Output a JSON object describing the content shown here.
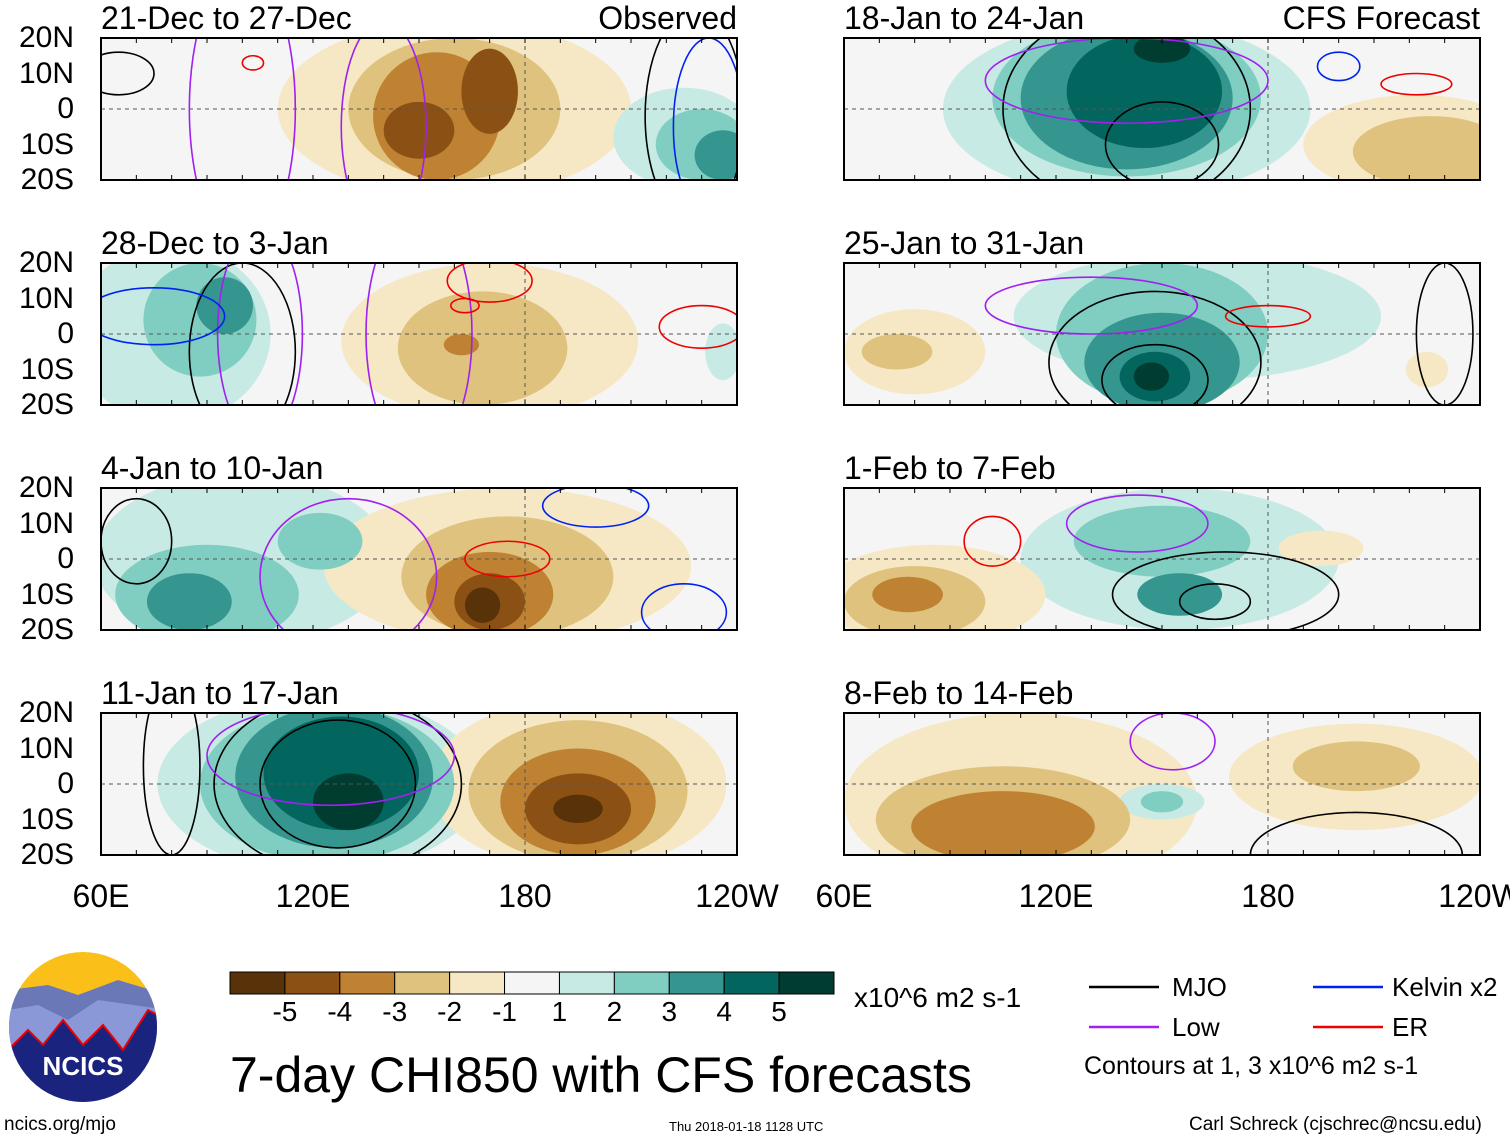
{
  "chart_data": {
    "type": "heatmap",
    "title": "7-day CHI850 with CFS forecasts",
    "units": "x10^6 m2 s-1",
    "lon_range": [
      60,
      240
    ],
    "lat_range": [
      -20,
      20
    ],
    "lat_ticks": [
      "20N",
      "10N",
      "0",
      "10S",
      "20S"
    ],
    "lon_ticks": [
      "60E",
      "120E",
      "180",
      "120W"
    ],
    "column_labels": {
      "left": "Observed",
      "right": "CFS Forecast"
    },
    "colorbar": {
      "levels": [
        "-5",
        "-4",
        "-3",
        "-2",
        "-1",
        "1",
        "2",
        "3",
        "4",
        "5"
      ],
      "colors": [
        "#583208",
        "#8b5114",
        "#bf8232",
        "#dfc27e",
        "#f6e8c4",
        "#f5f5f5",
        "#c7eae5",
        "#80cdc1",
        "#35968f",
        "#02665e",
        "#013c30"
      ]
    },
    "legend": {
      "mjo": "MJO",
      "kelvin": "Kelvin x2",
      "low": "Low",
      "er": "ER",
      "note": "Contours at 1, 3 x10^6 m2 s-1",
      "colors": {
        "mjo": "#000000",
        "kelvin": "#0022ee",
        "low": "#a020f0",
        "er": "#ee0000"
      }
    },
    "panels": [
      {
        "label": "21-Dec to 27-Dec",
        "col": 0,
        "row": 0,
        "anomalies": [
          [
            160,
            0,
            50,
            25,
            -1
          ],
          [
            160,
            0,
            30,
            20,
            -2
          ],
          [
            155,
            -2,
            18,
            18,
            -3
          ],
          [
            150,
            -6,
            10,
            8,
            -4
          ],
          [
            170,
            5,
            8,
            12,
            -4
          ],
          [
            225,
            -8,
            20,
            14,
            1
          ],
          [
            230,
            -10,
            13,
            10,
            2
          ],
          [
            236,
            -13,
            8,
            7,
            3
          ]
        ],
        "contours": [
          [
            "mjo",
            228,
            -2,
            14,
            30
          ],
          [
            "mjo",
            65,
            10,
            10,
            6
          ],
          [
            "low",
            100,
            0,
            15,
            40
          ],
          [
            "low",
            140,
            -5,
            12,
            30
          ],
          [
            "kelvin",
            232,
            -5,
            10,
            25
          ],
          [
            "er",
            103,
            13,
            3,
            2
          ]
        ]
      },
      {
        "label": "28-Dec to 3-Jan",
        "col": 0,
        "row": 1,
        "anomalies": [
          [
            80,
            0,
            28,
            25,
            1
          ],
          [
            88,
            4,
            16,
            16,
            2
          ],
          [
            95,
            8,
            8,
            8,
            3
          ],
          [
            170,
            -2,
            42,
            22,
            -1
          ],
          [
            168,
            -4,
            24,
            16,
            -2
          ],
          [
            162,
            -3,
            5,
            3,
            -3
          ],
          [
            236,
            -5,
            5,
            8,
            1
          ]
        ],
        "contours": [
          [
            "mjo",
            100,
            -5,
            15,
            25
          ],
          [
            "low",
            105,
            0,
            12,
            30
          ],
          [
            "low",
            150,
            0,
            15,
            35
          ],
          [
            "kelvin",
            75,
            5,
            20,
            8
          ],
          [
            "er",
            230,
            2,
            12,
            6
          ],
          [
            "er",
            170,
            15,
            12,
            6
          ],
          [
            "er",
            163,
            8,
            4,
            2
          ]
        ]
      },
      {
        "label": "4-Jan to 10-Jan",
        "col": 0,
        "row": 2,
        "anomalies": [
          [
            100,
            0,
            42,
            24,
            1
          ],
          [
            90,
            -10,
            26,
            14,
            2
          ],
          [
            85,
            -12,
            12,
            8,
            3
          ],
          [
            122,
            5,
            12,
            8,
            2
          ],
          [
            175,
            -2,
            52,
            22,
            -1
          ],
          [
            175,
            -5,
            30,
            17,
            -2
          ],
          [
            170,
            -10,
            18,
            12,
            -3
          ],
          [
            170,
            -12,
            10,
            8,
            -4
          ],
          [
            168,
            -13,
            5,
            5,
            -5
          ]
        ],
        "contours": [
          [
            "mjo",
            70,
            5,
            10,
            12
          ],
          [
            "low",
            130,
            -5,
            25,
            22
          ],
          [
            "kelvin",
            200,
            15,
            15,
            6
          ],
          [
            "kelvin",
            225,
            -15,
            12,
            8
          ],
          [
            "er",
            175,
            0,
            12,
            5
          ]
        ]
      },
      {
        "label": "11-Jan to 17-Jan",
        "col": 0,
        "row": 3,
        "anomalies": [
          [
            122,
            0,
            46,
            25,
            1
          ],
          [
            124,
            0,
            36,
            22,
            2
          ],
          [
            126,
            2,
            28,
            20,
            3
          ],
          [
            128,
            3,
            22,
            16,
            4
          ],
          [
            130,
            -5,
            10,
            8,
            5
          ],
          [
            195,
            0,
            42,
            24,
            -1
          ],
          [
            195,
            -2,
            31,
            20,
            -2
          ],
          [
            195,
            -5,
            22,
            15,
            -3
          ],
          [
            195,
            -7,
            15,
            10,
            -4
          ],
          [
            195,
            -7,
            7,
            4,
            -5
          ]
        ],
        "contours": [
          [
            "mjo",
            127,
            0,
            22,
            18
          ],
          [
            "mjo",
            127,
            0,
            35,
            25
          ],
          [
            "low",
            125,
            8,
            35,
            14
          ],
          [
            "mjo",
            80,
            5,
            8,
            25
          ]
        ]
      },
      {
        "label": "18-Jan to 24-Jan",
        "col": 1,
        "row": 0,
        "anomalies": [
          [
            140,
            0,
            52,
            25,
            1
          ],
          [
            140,
            3,
            38,
            22,
            2
          ],
          [
            140,
            3,
            30,
            20,
            3
          ],
          [
            145,
            5,
            22,
            16,
            4
          ],
          [
            150,
            17,
            8,
            4,
            5
          ],
          [
            222,
            -10,
            32,
            14,
            -1
          ],
          [
            226,
            -12,
            22,
            10,
            -2
          ]
        ],
        "contours": [
          [
            "mjo",
            140,
            0,
            35,
            28
          ],
          [
            "mjo",
            150,
            -10,
            16,
            12
          ],
          [
            "low",
            140,
            8,
            40,
            12
          ],
          [
            "kelvin",
            200,
            12,
            6,
            4
          ],
          [
            "er",
            222,
            7,
            10,
            3
          ]
        ]
      },
      {
        "label": "25-Jan to 31-Jan",
        "col": 1,
        "row": 1,
        "anomalies": [
          [
            160,
            5,
            52,
            18,
            1
          ],
          [
            150,
            0,
            30,
            20,
            2
          ],
          [
            150,
            -8,
            22,
            14,
            3
          ],
          [
            148,
            -12,
            10,
            7,
            4
          ],
          [
            147,
            -12,
            5,
            4,
            5
          ],
          [
            80,
            -5,
            20,
            12,
            -1
          ],
          [
            75,
            -5,
            10,
            5,
            -2
          ],
          [
            225,
            -10,
            6,
            5,
            -1
          ]
        ],
        "contours": [
          [
            "mjo",
            148,
            -8,
            30,
            20
          ],
          [
            "mjo",
            148,
            -13,
            15,
            10
          ],
          [
            "low",
            130,
            8,
            30,
            8
          ],
          [
            "er",
            180,
            5,
            12,
            3
          ],
          [
            "mjo",
            230,
            0,
            8,
            20
          ]
        ]
      },
      {
        "label": "1-Feb to 7-Feb",
        "col": 1,
        "row": 2,
        "anomalies": [
          [
            155,
            0,
            45,
            20,
            1
          ],
          [
            150,
            5,
            25,
            10,
            2
          ],
          [
            155,
            -10,
            12,
            6,
            3
          ],
          [
            85,
            -10,
            32,
            14,
            -1
          ],
          [
            80,
            -12,
            20,
            10,
            -2
          ],
          [
            78,
            -10,
            10,
            5,
            -3
          ],
          [
            195,
            3,
            12,
            5,
            -1
          ]
        ],
        "contours": [
          [
            "mjo",
            168,
            -10,
            32,
            12
          ],
          [
            "mjo",
            165,
            -12,
            10,
            5
          ],
          [
            "low",
            143,
            10,
            20,
            8
          ],
          [
            "er",
            102,
            5,
            8,
            7
          ]
        ]
      },
      {
        "label": "8-Feb to 14-Feb",
        "col": 1,
        "row": 3,
        "anomalies": [
          [
            110,
            -5,
            50,
            25,
            -1
          ],
          [
            105,
            -10,
            36,
            15,
            -2
          ],
          [
            105,
            -12,
            26,
            10,
            -3
          ],
          [
            205,
            2,
            36,
            15,
            -1
          ],
          [
            205,
            5,
            18,
            7,
            -2
          ],
          [
            150,
            -5,
            12,
            5,
            1
          ],
          [
            150,
            -5,
            6,
            3,
            2
          ]
        ],
        "contours": [
          [
            "low",
            153,
            12,
            12,
            8
          ],
          [
            "mjo",
            205,
            -20,
            30,
            12
          ]
        ]
      }
    ]
  },
  "footer": {
    "site": "ncics.org/mjo",
    "timestamp": "Thu 2018-01-18 1128 UTC",
    "author": "Carl Schreck (cjschrec@ncsu.edu)",
    "logo": "NCICS"
  }
}
